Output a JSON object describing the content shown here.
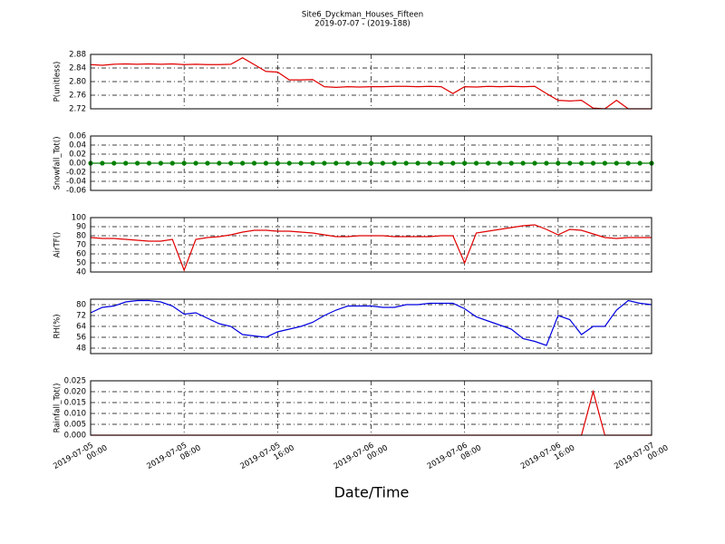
{
  "chart_data": [
    {
      "type": "line",
      "title": "Site6_Dyckman_Houses_Fifteen",
      "subtitle": "2019-07-07 - (2019-188)",
      "ylabel": "P(unitless)",
      "grid": true,
      "xlim": [
        "2019-07-05 00:00",
        "2019-07-07 00:00"
      ],
      "xticks": [
        "2019-07-05 00:00",
        "2019-07-05 08:00",
        "2019-07-05 16:00",
        "2019-07-06 00:00",
        "2019-07-06 08:00",
        "2019-07-06 16:00",
        "2019-07-07 00:00"
      ],
      "ylim": [
        2.72,
        2.88
      ],
      "yticks": [
        2.72,
        2.76,
        {
          "value": 2.8,
          "label": "2.80"
        },
        2.84,
        2.88
      ],
      "x": [
        "2019-07-05 00:00",
        "2019-07-05 01:00",
        "2019-07-05 02:00",
        "2019-07-05 03:00",
        "2019-07-05 04:00",
        "2019-07-05 05:00",
        "2019-07-05 06:00",
        "2019-07-05 07:00",
        "2019-07-05 08:00",
        "2019-07-05 09:00",
        "2019-07-05 10:00",
        "2019-07-05 11:00",
        "2019-07-05 12:00",
        "2019-07-05 13:00",
        "2019-07-05 14:00",
        "2019-07-05 15:00",
        "2019-07-05 16:00",
        "2019-07-05 17:00",
        "2019-07-05 18:00",
        "2019-07-05 19:00",
        "2019-07-05 20:00",
        "2019-07-05 21:00",
        "2019-07-05 22:00",
        "2019-07-05 23:00",
        "2019-07-06 00:00",
        "2019-07-06 01:00",
        "2019-07-06 02:00",
        "2019-07-06 03:00",
        "2019-07-06 04:00",
        "2019-07-06 05:00",
        "2019-07-06 06:00",
        "2019-07-06 07:00",
        "2019-07-06 08:00",
        "2019-07-06 09:00",
        "2019-07-06 10:00",
        "2019-07-06 11:00",
        "2019-07-06 12:00",
        "2019-07-06 13:00",
        "2019-07-06 14:00",
        "2019-07-06 15:00",
        "2019-07-06 16:00",
        "2019-07-06 17:00",
        "2019-07-06 18:00",
        "2019-07-06 19:00",
        "2019-07-06 20:00",
        "2019-07-06 21:00",
        "2019-07-06 22:00",
        "2019-07-06 23:00",
        "2019-07-07 00:00"
      ],
      "series": [
        {
          "color": "#e00000",
          "values": [
            2.85,
            2.848,
            2.851,
            2.852,
            2.851,
            2.852,
            2.851,
            2.852,
            2.85,
            2.851,
            2.85,
            2.85,
            2.851,
            2.87,
            2.85,
            2.83,
            2.828,
            2.805,
            2.805,
            2.806,
            2.785,
            2.783,
            2.785,
            2.784,
            2.785,
            2.785,
            2.786,
            2.786,
            2.785,
            2.786,
            2.785,
            2.765,
            2.785,
            2.784,
            2.786,
            2.785,
            2.786,
            2.785,
            2.786,
            2.765,
            2.745,
            2.743,
            2.745,
            2.722,
            2.72,
            2.745,
            2.72,
            2.72,
            2.72
          ]
        }
      ]
    },
    {
      "type": "line",
      "ylabel": "Snowfall_Tot()",
      "grid": true,
      "marker": true,
      "xlim": [
        "2019-07-05 00:00",
        "2019-07-07 00:00"
      ],
      "xticks": [
        "2019-07-05 00:00",
        "2019-07-05 08:00",
        "2019-07-05 16:00",
        "2019-07-06 00:00",
        "2019-07-06 08:00",
        "2019-07-06 16:00",
        "2019-07-07 00:00"
      ],
      "ylim": [
        -0.06,
        0.06
      ],
      "yticks": [
        -0.06,
        -0.04,
        -0.02,
        {
          "value": 0,
          "label": "0.00"
        },
        0.02,
        0.04,
        0.06
      ],
      "x": [
        "2019-07-05 00:00",
        "2019-07-05 01:00",
        "2019-07-05 02:00",
        "2019-07-05 03:00",
        "2019-07-05 04:00",
        "2019-07-05 05:00",
        "2019-07-05 06:00",
        "2019-07-05 07:00",
        "2019-07-05 08:00",
        "2019-07-05 09:00",
        "2019-07-05 10:00",
        "2019-07-05 11:00",
        "2019-07-05 12:00",
        "2019-07-05 13:00",
        "2019-07-05 14:00",
        "2019-07-05 15:00",
        "2019-07-05 16:00",
        "2019-07-05 17:00",
        "2019-07-05 18:00",
        "2019-07-05 19:00",
        "2019-07-05 20:00",
        "2019-07-05 21:00",
        "2019-07-05 22:00",
        "2019-07-05 23:00",
        "2019-07-06 00:00",
        "2019-07-06 01:00",
        "2019-07-06 02:00",
        "2019-07-06 03:00",
        "2019-07-06 04:00",
        "2019-07-06 05:00",
        "2019-07-06 06:00",
        "2019-07-06 07:00",
        "2019-07-06 08:00",
        "2019-07-06 09:00",
        "2019-07-06 10:00",
        "2019-07-06 11:00",
        "2019-07-06 12:00",
        "2019-07-06 13:00",
        "2019-07-06 14:00",
        "2019-07-06 15:00",
        "2019-07-06 16:00",
        "2019-07-06 17:00",
        "2019-07-06 18:00",
        "2019-07-06 19:00",
        "2019-07-06 20:00",
        "2019-07-06 21:00",
        "2019-07-06 22:00",
        "2019-07-06 23:00",
        "2019-07-07 00:00"
      ],
      "series": [
        {
          "color": "#008000",
          "values": [
            0,
            0,
            0,
            0,
            0,
            0,
            0,
            0,
            0,
            0,
            0,
            0,
            0,
            0,
            0,
            0,
            0,
            0,
            0,
            0,
            0,
            0,
            0,
            0,
            0,
            0,
            0,
            0,
            0,
            0,
            0,
            0,
            0,
            0,
            0,
            0,
            0,
            0,
            0,
            0,
            0,
            0,
            0,
            0,
            0,
            0,
            0,
            0,
            0
          ]
        }
      ]
    },
    {
      "type": "line",
      "ylabel": "AirTF()",
      "grid": true,
      "xlim": [
        "2019-07-05 00:00",
        "2019-07-07 00:00"
      ],
      "xticks": [
        "2019-07-05 00:00",
        "2019-07-05 08:00",
        "2019-07-05 16:00",
        "2019-07-06 00:00",
        "2019-07-06 08:00",
        "2019-07-06 16:00",
        "2019-07-07 00:00"
      ],
      "ylim": [
        40,
        100
      ],
      "yticks": [
        40,
        50,
        60,
        70,
        80,
        90,
        100
      ],
      "x": [
        "2019-07-05 00:00",
        "2019-07-05 01:00",
        "2019-07-05 02:00",
        "2019-07-05 03:00",
        "2019-07-05 04:00",
        "2019-07-05 05:00",
        "2019-07-05 06:00",
        "2019-07-05 07:00",
        "2019-07-05 08:00",
        "2019-07-05 09:00",
        "2019-07-05 10:00",
        "2019-07-05 11:00",
        "2019-07-05 12:00",
        "2019-07-05 13:00",
        "2019-07-05 14:00",
        "2019-07-05 15:00",
        "2019-07-05 16:00",
        "2019-07-05 17:00",
        "2019-07-05 18:00",
        "2019-07-05 19:00",
        "2019-07-05 20:00",
        "2019-07-05 21:00",
        "2019-07-05 22:00",
        "2019-07-05 23:00",
        "2019-07-06 00:00",
        "2019-07-06 01:00",
        "2019-07-06 02:00",
        "2019-07-06 03:00",
        "2019-07-06 04:00",
        "2019-07-06 05:00",
        "2019-07-06 06:00",
        "2019-07-06 07:00",
        "2019-07-06 08:00",
        "2019-07-06 09:00",
        "2019-07-06 10:00",
        "2019-07-06 11:00",
        "2019-07-06 12:00",
        "2019-07-06 13:00",
        "2019-07-06 14:00",
        "2019-07-06 15:00",
        "2019-07-06 16:00",
        "2019-07-06 17:00",
        "2019-07-06 18:00",
        "2019-07-06 19:00",
        "2019-07-06 20:00",
        "2019-07-06 21:00",
        "2019-07-06 22:00",
        "2019-07-06 23:00",
        "2019-07-07 00:00"
      ],
      "series": [
        {
          "color": "#e00000",
          "values": [
            78,
            77,
            77,
            76,
            75,
            74,
            74,
            76,
            42,
            76,
            78,
            79,
            81,
            84,
            86,
            86,
            85,
            85,
            84,
            83,
            81,
            79,
            79,
            80,
            80,
            80,
            79,
            79,
            79,
            79,
            80,
            80,
            50,
            83,
            85,
            87,
            89,
            91,
            92,
            87,
            81,
            87,
            86,
            82,
            78,
            77,
            78,
            78,
            78
          ]
        }
      ]
    },
    {
      "type": "line",
      "ylabel": "RH(%)",
      "grid": true,
      "xlim": [
        "2019-07-05 00:00",
        "2019-07-07 00:00"
      ],
      "xticks": [
        "2019-07-05 00:00",
        "2019-07-05 08:00",
        "2019-07-05 16:00",
        "2019-07-06 00:00",
        "2019-07-06 08:00",
        "2019-07-06 16:00",
        "2019-07-07 00:00"
      ],
      "ylim": [
        44,
        84
      ],
      "yticks": [
        48,
        56,
        64,
        72,
        80
      ],
      "x": [
        "2019-07-05 00:00",
        "2019-07-05 01:00",
        "2019-07-05 02:00",
        "2019-07-05 03:00",
        "2019-07-05 04:00",
        "2019-07-05 05:00",
        "2019-07-05 06:00",
        "2019-07-05 07:00",
        "2019-07-05 08:00",
        "2019-07-05 09:00",
        "2019-07-05 10:00",
        "2019-07-05 11:00",
        "2019-07-05 12:00",
        "2019-07-05 13:00",
        "2019-07-05 14:00",
        "2019-07-05 15:00",
        "2019-07-05 16:00",
        "2019-07-05 17:00",
        "2019-07-05 18:00",
        "2019-07-05 19:00",
        "2019-07-05 20:00",
        "2019-07-05 21:00",
        "2019-07-05 22:00",
        "2019-07-05 23:00",
        "2019-07-06 00:00",
        "2019-07-06 01:00",
        "2019-07-06 02:00",
        "2019-07-06 03:00",
        "2019-07-06 04:00",
        "2019-07-06 05:00",
        "2019-07-06 06:00",
        "2019-07-06 07:00",
        "2019-07-06 08:00",
        "2019-07-06 09:00",
        "2019-07-06 10:00",
        "2019-07-06 11:00",
        "2019-07-06 12:00",
        "2019-07-06 13:00",
        "2019-07-06 14:00",
        "2019-07-06 15:00",
        "2019-07-06 16:00",
        "2019-07-06 17:00",
        "2019-07-06 18:00",
        "2019-07-06 19:00",
        "2019-07-06 20:00",
        "2019-07-06 21:00",
        "2019-07-06 22:00",
        "2019-07-06 23:00",
        "2019-07-07 00:00"
      ],
      "series": [
        {
          "color": "#0000e0",
          "values": [
            74,
            78,
            79,
            82,
            83,
            83,
            82,
            79,
            73,
            74,
            70,
            66,
            64,
            58,
            57,
            56,
            60,
            62,
            64,
            67,
            72,
            76,
            79,
            79,
            79,
            78,
            78,
            80,
            80,
            81,
            81,
            81,
            77,
            71,
            68,
            65,
            62,
            55,
            53,
            50,
            72,
            69,
            58,
            64,
            64,
            76,
            83,
            81,
            80
          ]
        }
      ]
    },
    {
      "type": "line",
      "ylabel": "Rainfall_Tot()",
      "xlabel": "Date/Time",
      "grid": true,
      "xlim": [
        "2019-07-05 00:00",
        "2019-07-07 00:00"
      ],
      "xticks": [
        "2019-07-05 00:00",
        "2019-07-05 08:00",
        "2019-07-05 16:00",
        "2019-07-06 00:00",
        "2019-07-06 08:00",
        "2019-07-06 16:00",
        "2019-07-07 00:00"
      ],
      "ylim": [
        0,
        0.025
      ],
      "yticks": [
        {
          "value": 0,
          "label": "0.000"
        },
        0.005,
        {
          "value": 0.01,
          "label": "0.010"
        },
        0.015,
        {
          "value": 0.02,
          "label": "0.020"
        },
        0.025
      ],
      "x": [
        "2019-07-05 00:00",
        "2019-07-05 01:00",
        "2019-07-05 02:00",
        "2019-07-05 03:00",
        "2019-07-05 04:00",
        "2019-07-05 05:00",
        "2019-07-05 06:00",
        "2019-07-05 07:00",
        "2019-07-05 08:00",
        "2019-07-05 09:00",
        "2019-07-05 10:00",
        "2019-07-05 11:00",
        "2019-07-05 12:00",
        "2019-07-05 13:00",
        "2019-07-05 14:00",
        "2019-07-05 15:00",
        "2019-07-05 16:00",
        "2019-07-05 17:00",
        "2019-07-05 18:00",
        "2019-07-05 19:00",
        "2019-07-05 20:00",
        "2019-07-05 21:00",
        "2019-07-05 22:00",
        "2019-07-05 23:00",
        "2019-07-06 00:00",
        "2019-07-06 01:00",
        "2019-07-06 02:00",
        "2019-07-06 03:00",
        "2019-07-06 04:00",
        "2019-07-06 05:00",
        "2019-07-06 06:00",
        "2019-07-06 07:00",
        "2019-07-06 08:00",
        "2019-07-06 09:00",
        "2019-07-06 10:00",
        "2019-07-06 11:00",
        "2019-07-06 12:00",
        "2019-07-06 13:00",
        "2019-07-06 14:00",
        "2019-07-06 15:00",
        "2019-07-06 16:00",
        "2019-07-06 17:00",
        "2019-07-06 18:00",
        "2019-07-06 19:00",
        "2019-07-06 20:00",
        "2019-07-06 21:00",
        "2019-07-06 22:00",
        "2019-07-06 23:00",
        "2019-07-07 00:00"
      ],
      "series": [
        {
          "color": "#e00000",
          "values": [
            0,
            0,
            0,
            0,
            0,
            0,
            0,
            0,
            0,
            0,
            0,
            0,
            0,
            0,
            0,
            0,
            0,
            0,
            0,
            0,
            0,
            0,
            0,
            0,
            0,
            0,
            0,
            0,
            0,
            0,
            0,
            0,
            0,
            0,
            0,
            0,
            0,
            0,
            0,
            0,
            0,
            0,
            0,
            0.02,
            0,
            0,
            0,
            0,
            0
          ]
        }
      ]
    }
  ]
}
